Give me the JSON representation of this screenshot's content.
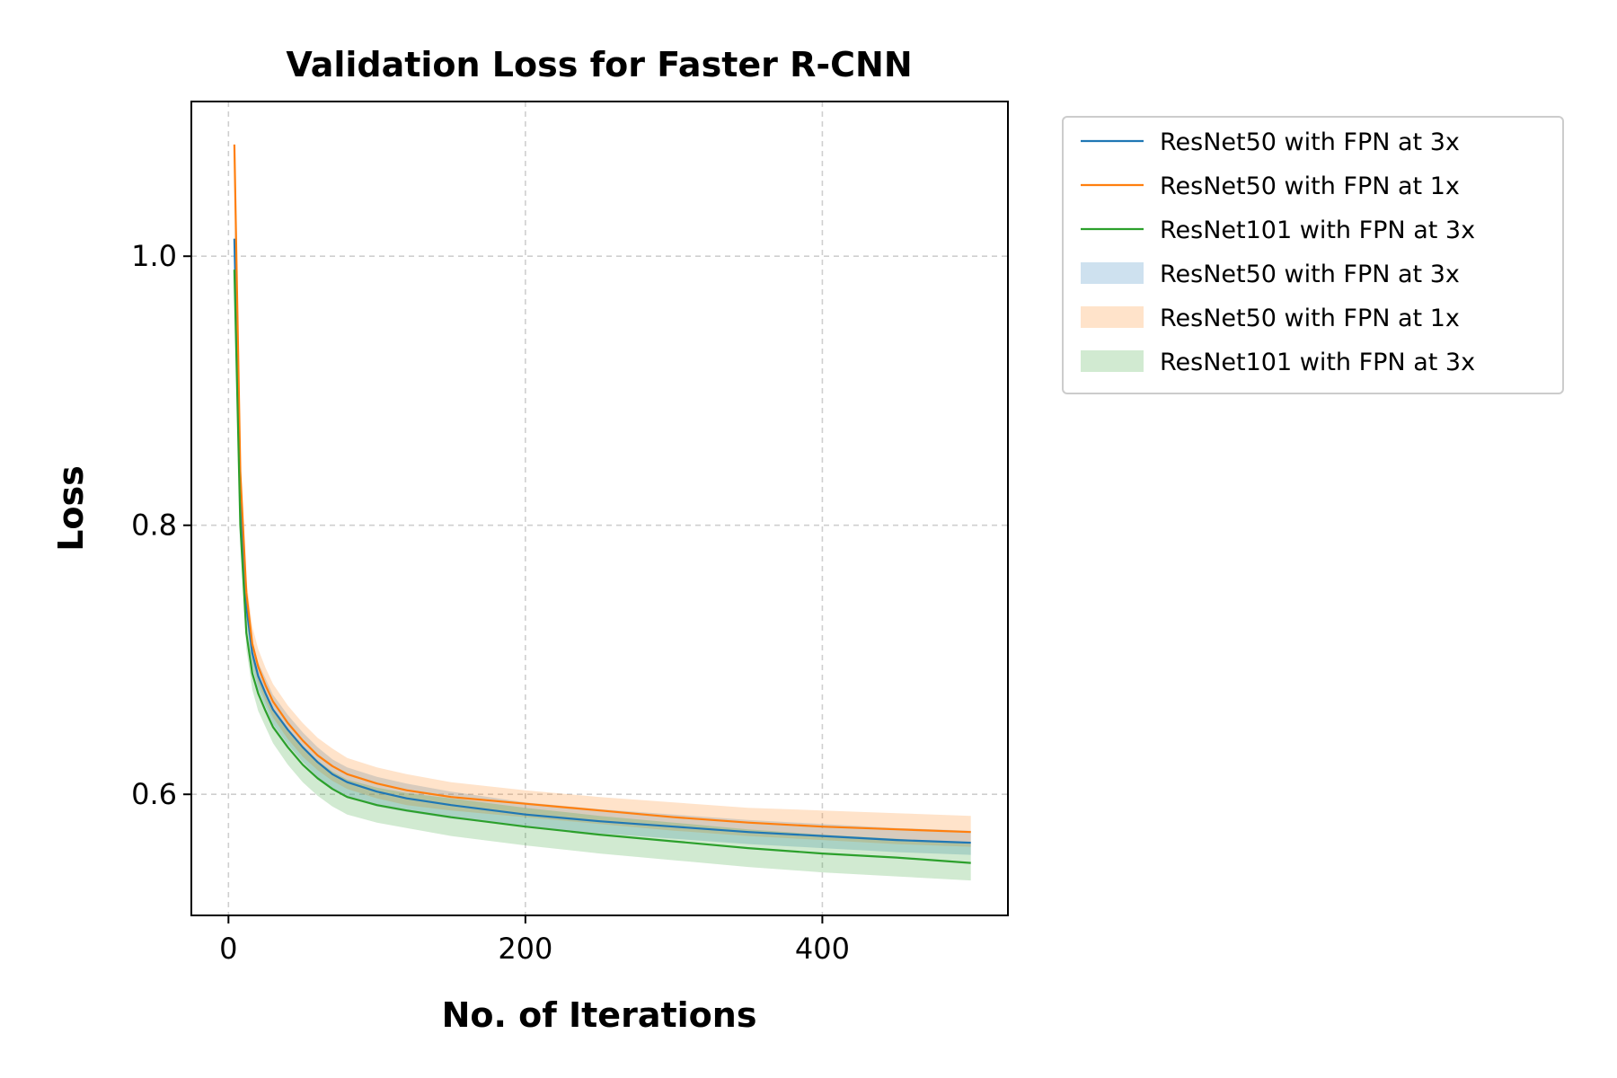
{
  "chart_data": {
    "type": "line",
    "title": "Validation Loss for Faster R-CNN",
    "xlabel": "No. of Iterations",
    "ylabel": "Loss",
    "xlim": [
      -25,
      525
    ],
    "ylim": [
      0.51,
      1.115
    ],
    "xticks": [
      0,
      200,
      400
    ],
    "yticks": [
      0.6,
      0.8,
      1.0
    ],
    "xtick_labels": [
      "0",
      "200",
      "400"
    ],
    "ytick_labels": [
      "0.6",
      "0.8",
      "1.0"
    ],
    "grid": true,
    "legend_position": "outside-right",
    "x": [
      4,
      8,
      12,
      16,
      20,
      25,
      30,
      40,
      50,
      60,
      70,
      80,
      100,
      120,
      150,
      200,
      250,
      300,
      350,
      400,
      450,
      500
    ],
    "series": [
      {
        "name": "ResNet50 with FPN at 3x",
        "color": "#1f77b4",
        "values": [
          1.013,
          0.82,
          0.74,
          0.705,
          0.688,
          0.675,
          0.663,
          0.648,
          0.635,
          0.624,
          0.615,
          0.609,
          0.602,
          0.597,
          0.592,
          0.585,
          0.58,
          0.576,
          0.572,
          0.569,
          0.566,
          0.564
        ],
        "band_lower": [
          1.0,
          0.81,
          0.73,
          0.695,
          0.678,
          0.665,
          0.652,
          0.637,
          0.624,
          0.613,
          0.604,
          0.598,
          0.591,
          0.587,
          0.582,
          0.576,
          0.571,
          0.567,
          0.563,
          0.56,
          0.557,
          0.555
        ],
        "band_upper": [
          1.025,
          0.83,
          0.75,
          0.715,
          0.698,
          0.686,
          0.674,
          0.659,
          0.646,
          0.635,
          0.626,
          0.62,
          0.613,
          0.608,
          0.602,
          0.594,
          0.589,
          0.585,
          0.581,
          0.578,
          0.575,
          0.573
        ]
      },
      {
        "name": "ResNet50 with FPN at 1x",
        "color": "#ff7f0e",
        "values": [
          1.083,
          0.84,
          0.75,
          0.712,
          0.695,
          0.681,
          0.669,
          0.653,
          0.64,
          0.629,
          0.621,
          0.615,
          0.608,
          0.603,
          0.598,
          0.593,
          0.588,
          0.583,
          0.579,
          0.576,
          0.574,
          0.572
        ],
        "band_lower": [
          1.08,
          0.83,
          0.74,
          0.7,
          0.683,
          0.669,
          0.657,
          0.641,
          0.628,
          0.618,
          0.61,
          0.604,
          0.597,
          0.592,
          0.588,
          0.583,
          0.578,
          0.573,
          0.569,
          0.566,
          0.563,
          0.561
        ],
        "band_upper": [
          1.086,
          0.85,
          0.76,
          0.725,
          0.708,
          0.694,
          0.682,
          0.666,
          0.653,
          0.642,
          0.634,
          0.627,
          0.62,
          0.615,
          0.609,
          0.603,
          0.598,
          0.594,
          0.59,
          0.588,
          0.586,
          0.584
        ]
      },
      {
        "name": "ResNet101 with FPN at 3x",
        "color": "#2ca02c",
        "values": [
          0.99,
          0.8,
          0.72,
          0.69,
          0.675,
          0.662,
          0.65,
          0.635,
          0.622,
          0.612,
          0.604,
          0.598,
          0.592,
          0.588,
          0.583,
          0.576,
          0.57,
          0.565,
          0.56,
          0.556,
          0.553,
          0.549
        ],
        "band_lower": [
          0.975,
          0.79,
          0.708,
          0.678,
          0.662,
          0.65,
          0.638,
          0.622,
          0.609,
          0.599,
          0.591,
          0.585,
          0.579,
          0.575,
          0.569,
          0.562,
          0.556,
          0.551,
          0.546,
          0.542,
          0.539,
          0.536
        ],
        "band_upper": [
          1.005,
          0.81,
          0.732,
          0.702,
          0.688,
          0.674,
          0.662,
          0.648,
          0.635,
          0.625,
          0.617,
          0.611,
          0.605,
          0.601,
          0.597,
          0.59,
          0.584,
          0.579,
          0.574,
          0.57,
          0.567,
          0.563
        ]
      }
    ],
    "legend": [
      {
        "label": "ResNet50 with FPN at 3x",
        "kind": "line",
        "color": "#1f77b4"
      },
      {
        "label": "ResNet50 with FPN at 1x",
        "kind": "line",
        "color": "#ff7f0e"
      },
      {
        "label": "ResNet101 with FPN at 3x",
        "kind": "line",
        "color": "#2ca02c"
      },
      {
        "label": "ResNet50 with FPN at 3x",
        "kind": "band",
        "color": "#1f77b4"
      },
      {
        "label": "ResNet50 with FPN at 1x",
        "kind": "band",
        "color": "#ff7f0e"
      },
      {
        "label": "ResNet101 with FPN at 3x",
        "kind": "band",
        "color": "#2ca02c"
      }
    ]
  }
}
